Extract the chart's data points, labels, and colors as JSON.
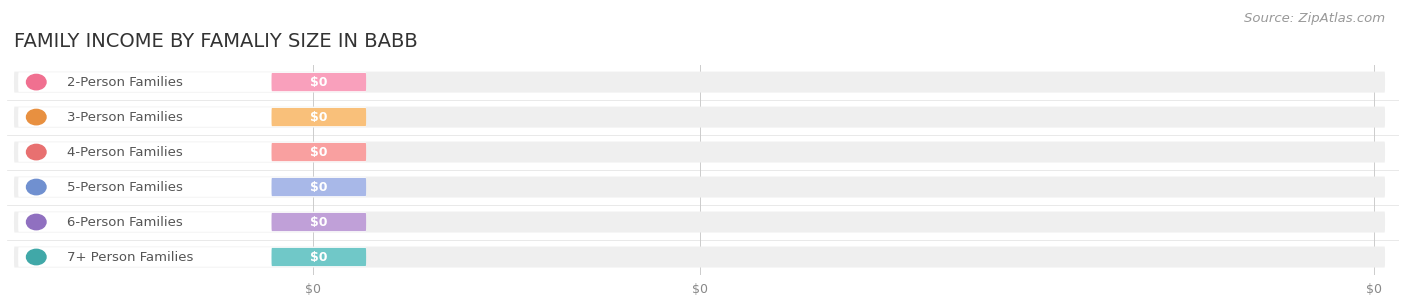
{
  "title": "FAMILY INCOME BY FAMALIY SIZE IN BABB",
  "source_text": "Source: ZipAtlas.com",
  "categories": [
    "2-Person Families",
    "3-Person Families",
    "4-Person Families",
    "5-Person Families",
    "6-Person Families",
    "7+ Person Families"
  ],
  "values": [
    0,
    0,
    0,
    0,
    0,
    0
  ],
  "bar_colors": [
    "#F9A0BC",
    "#F9C07A",
    "#F9A0A0",
    "#A8B8E8",
    "#C0A0D8",
    "#70C8C8"
  ],
  "dot_colors": [
    "#F07090",
    "#E89040",
    "#E87070",
    "#7090D0",
    "#9070C0",
    "#40A8A8"
  ],
  "bg_track_color": "#EFEFEF",
  "label_value_texts": [
    "$0",
    "$0",
    "$0",
    "$0",
    "$0",
    "$0"
  ],
  "x_tick_labels": [
    "$0",
    "$0",
    "$0"
  ],
  "background_color": "#FFFFFF",
  "title_fontsize": 14,
  "label_fontsize": 9.5,
  "value_fontsize": 9,
  "source_fontsize": 9.5
}
